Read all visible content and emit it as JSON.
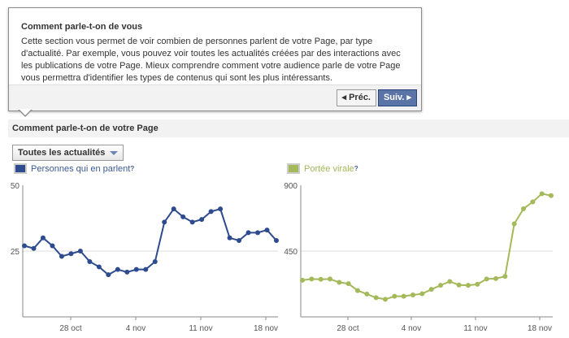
{
  "popup": {
    "title": "Comment parle-t-on de vous",
    "body": "Cette section vous permet de voir combien de personnes parlent de votre Page, par type d'actualité. Par exemple, vous pouvez voir toutes les actualités créées par des interactions avec les publications de votre Page. Mieux comprendre comment votre audience parle de votre Page vous permettra d'identifier les types de contenus qui sont les plus intéressants.",
    "prev": "◂ Préc.",
    "next": "Suiv. ▸"
  },
  "section_title": "Comment parle-t-on de votre Page",
  "filter": "Toutes les actualités",
  "chart_data": [
    {
      "type": "line",
      "legend": "Personnes qui en parlent",
      "help": "?",
      "color": "#2d4b8e",
      "ylim": [
        0,
        50
      ],
      "yticks": [
        "50",
        "25"
      ],
      "xticks": [
        "28 oct",
        "4 nov",
        "11 nov",
        "18 nov"
      ],
      "x_start": "23 oct",
      "x_end": "19 nov",
      "values": [
        27,
        26,
        30,
        27,
        23,
        24,
        25,
        21,
        19,
        16,
        18,
        17,
        18,
        18,
        21,
        36,
        41,
        38,
        36,
        37,
        40,
        41,
        30,
        29,
        32,
        32,
        33,
        29
      ]
    },
    {
      "type": "line",
      "legend": "Portée virale",
      "help": "?",
      "color": "#a4b95a",
      "ylim": [
        0,
        900
      ],
      "yticks": [
        "900",
        "450"
      ],
      "xticks": [
        "28 oct",
        "4 nov",
        "11 nov",
        "18 nov"
      ],
      "x_start": "23 oct",
      "x_end": "19 nov",
      "values": [
        251,
        259,
        257,
        259,
        236,
        227,
        180,
        156,
        131,
        120,
        141,
        141,
        150,
        158,
        188,
        216,
        242,
        218,
        216,
        223,
        259,
        262,
        277,
        636,
        739,
        786,
        842,
        829
      ]
    }
  ]
}
